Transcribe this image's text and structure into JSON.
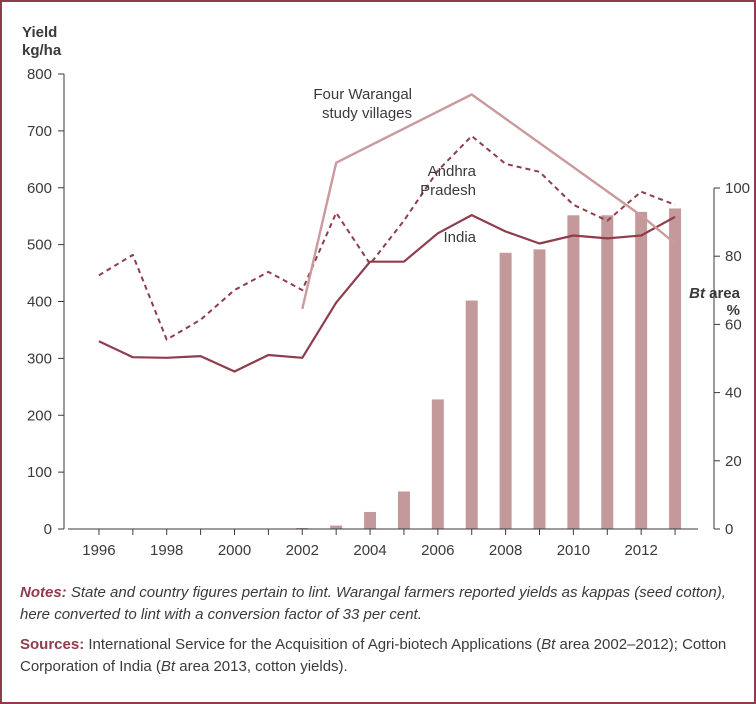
{
  "chart_data": {
    "type": "line",
    "title": "",
    "left_axis": {
      "title_line1": "Yield",
      "title_line2": "kg/ha",
      "ylim": [
        0,
        800
      ],
      "ticks": [
        "0",
        "100",
        "200",
        "300",
        "400",
        "500",
        "600",
        "700",
        "800"
      ]
    },
    "right_axis": {
      "title_italic": "Bt",
      "title_rest": " area",
      "unit": "%",
      "ylim": [
        0,
        100
      ],
      "ticks": [
        "0",
        "20",
        "40",
        "60",
        "80",
        "100"
      ]
    },
    "x_ticks": [
      "1996",
      "1998",
      "2000",
      "2002",
      "2004",
      "2006",
      "2008",
      "2010",
      "2012"
    ],
    "xlim": [
      1995.5,
      2013.5
    ],
    "series": [
      {
        "name": "India",
        "label_lines": [
          "India"
        ],
        "style": "solid",
        "color": "#8f3d4c",
        "points": [
          [
            1996,
            330
          ],
          [
            1997,
            302
          ],
          [
            1998,
            301
          ],
          [
            1999,
            304
          ],
          [
            2000,
            277
          ],
          [
            2001,
            306
          ],
          [
            2002,
            301
          ],
          [
            2003,
            398
          ],
          [
            2004,
            470
          ],
          [
            2005,
            470
          ],
          [
            2006,
            520
          ],
          [
            2007,
            552
          ],
          [
            2008,
            523
          ],
          [
            2009,
            502
          ],
          [
            2010,
            516
          ],
          [
            2011,
            511
          ],
          [
            2012,
            516
          ],
          [
            2013,
            549
          ]
        ]
      },
      {
        "name": "Andhra Pradesh",
        "label_lines": [
          "Andhra",
          "Pradesh"
        ],
        "style": "dashed",
        "color": "#8f3d4c",
        "points": [
          [
            1996,
            446
          ],
          [
            1997,
            482
          ],
          [
            1998,
            333
          ],
          [
            1999,
            368
          ],
          [
            2000,
            420
          ],
          [
            2001,
            452
          ],
          [
            2002,
            420
          ],
          [
            2003,
            556
          ],
          [
            2004,
            466
          ],
          [
            2005,
            542
          ],
          [
            2006,
            630
          ],
          [
            2007,
            691
          ],
          [
            2008,
            642
          ],
          [
            2009,
            628
          ],
          [
            2010,
            570
          ],
          [
            2011,
            542
          ],
          [
            2012,
            593
          ],
          [
            2013,
            570
          ]
        ]
      },
      {
        "name": "Four Warangal study villages",
        "label_lines": [
          "Four Warangal",
          "study villages"
        ],
        "style": "solid",
        "color": "#c99a9e",
        "points": [
          [
            2002,
            387
          ],
          [
            2003,
            644
          ],
          [
            2007,
            764
          ],
          [
            2012,
            551
          ],
          [
            2013,
            502
          ]
        ]
      }
    ],
    "bars": {
      "name": "Bt area",
      "color": "#c4999b",
      "axis": "right",
      "points": [
        [
          2002,
          0.2
        ],
        [
          2003,
          1
        ],
        [
          2004,
          5
        ],
        [
          2005,
          11
        ],
        [
          2006,
          38
        ],
        [
          2007,
          67
        ],
        [
          2008,
          81
        ],
        [
          2009,
          82
        ],
        [
          2010,
          92
        ],
        [
          2011,
          92
        ],
        [
          2012,
          93
        ],
        [
          2013,
          94
        ]
      ]
    }
  },
  "notes": {
    "notes_label": "Notes:",
    "notes_text": " State and country figures pertain to lint. Warangal farmers reported yields as kappas (seed cotton), here converted to lint with a conversion factor of 33 per cent.",
    "sources_label": "Sources:",
    "sources_text_1": " International Service for the Acquisition of Agri-biotech Applications (",
    "sources_bt_1": "Bt",
    "sources_text_2": " area 2002–2012); Cotton Corporation of India (",
    "sources_bt_2": "Bt",
    "sources_text_3": " area 2013, cotton yields)."
  }
}
